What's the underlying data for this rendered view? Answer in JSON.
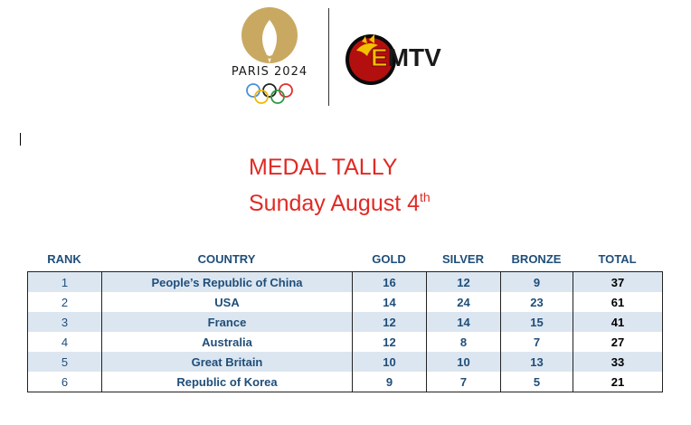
{
  "header": {
    "paris_logo_text": "PARIS 2024",
    "emtv_logo_text_e": "E",
    "emtv_logo_text_rest": "MTV"
  },
  "title": {
    "line1": "MEDAL TALLY",
    "line2": "Sunday August 4",
    "line2_suffix": "th"
  },
  "table": {
    "headers": {
      "rank": "RANK",
      "country": "COUNTRY",
      "gold": "GOLD",
      "silver": "SILVER",
      "bronze": "BRONZE",
      "total": "TOTAL"
    },
    "rows": [
      {
        "rank": "1",
        "country": "People’s Republic of China",
        "gold": "16",
        "silver": "12",
        "bronze": "9",
        "total": "37"
      },
      {
        "rank": "2",
        "country": "USA",
        "gold": "14",
        "silver": "24",
        "bronze": "23",
        "total": "61"
      },
      {
        "rank": "3",
        "country": "France",
        "gold": "12",
        "silver": "14",
        "bronze": "15",
        "total": "41"
      },
      {
        "rank": "4",
        "country": "Australia",
        "gold": "12",
        "silver": "8",
        "bronze": "7",
        "total": "27"
      },
      {
        "rank": "5",
        "country": "Great Britain",
        "gold": "10",
        "silver": "10",
        "bronze": "13",
        "total": "33"
      },
      {
        "rank": "6",
        "country": "Republic of Korea",
        "gold": "9",
        "silver": "7",
        "bronze": "5",
        "total": "21"
      }
    ]
  },
  "colors": {
    "title": "#e02a24",
    "header_text": "#1f4e79",
    "row_shade": "#dce6f1",
    "paris_gold": "#c9a961"
  },
  "icons": [
    "paris-2024-flame-logo",
    "olympic-rings-icon",
    "emtv-bird-logo"
  ]
}
